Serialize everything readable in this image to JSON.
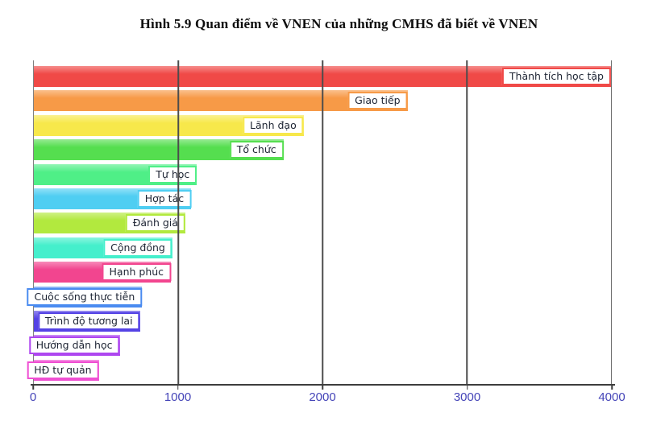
{
  "title": "Hình 5.9 Quan điểm về VNEN của những CMHS đã biết về VNEN",
  "chart_data": {
    "type": "bar",
    "orientation": "horizontal",
    "title": "Hình 5.9 Quan điểm về VNEN của những CMHS đã biết về VNEN",
    "xlabel": "",
    "ylabel": "",
    "xlim": [
      0,
      4000
    ],
    "x_tick_labels": [
      "0",
      "1000",
      "2000",
      "3000",
      "4000"
    ],
    "grid": "vertical-gridlines-on",
    "legend": "none",
    "data_label_style": "white box with bar-colored border at end of each bar",
    "categories": [
      "Thành tích học tập",
      "Giao tiếp",
      "Lãnh đạo",
      "Tổ chức",
      "Tự học",
      "Hợp tác",
      "Đánh giá",
      "Cộng đồng",
      "Hạnh phúc",
      "Cuộc sống thực tiễn",
      "Trình độ tương lai",
      "Hướng dẫn học",
      "HĐ tự quản"
    ],
    "values": [
      4000,
      2590,
      1870,
      1730,
      1130,
      1090,
      1050,
      960,
      950,
      750,
      735,
      595,
      450
    ],
    "colors": [
      "#f04947",
      "#f79a47",
      "#f7e84b",
      "#55de4f",
      "#4fef87",
      "#4fcef2",
      "#b2e93e",
      "#45efcc",
      "#f2458f",
      "#4a8bf0",
      "#5442e5",
      "#ae46f0",
      "#ef4ed2"
    ],
    "axis_label_color": "#4545b8",
    "gridline_color": "#4c4c4c",
    "label_text_color": "#1d2433"
  }
}
